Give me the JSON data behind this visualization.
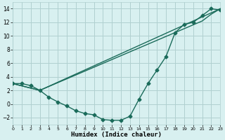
{
  "line1_x": [
    0,
    1,
    2,
    3,
    4,
    5,
    6,
    7,
    8,
    9,
    10,
    11,
    12,
    13,
    14,
    15,
    16,
    17,
    18,
    19,
    20,
    21,
    22,
    23
  ],
  "line1_y": [
    3.0,
    3.0,
    2.7,
    2.0,
    1.0,
    0.3,
    -0.3,
    -1.0,
    -1.4,
    -1.6,
    -2.3,
    -2.4,
    -2.4,
    -1.8,
    0.7,
    3.0,
    5.0,
    7.0,
    10.5,
    11.7,
    12.0,
    13.0,
    14.0,
    13.8
  ],
  "line2_x": [
    0,
    3,
    23
  ],
  "line2_y": [
    3.0,
    2.0,
    14.0
  ],
  "line3_x": [
    0,
    3,
    18,
    21,
    22,
    23
  ],
  "line3_y": [
    3.0,
    2.0,
    10.5,
    12.2,
    13.2,
    14.0
  ],
  "color": "#1a6b5a",
  "bg_color": "#d8f0f0",
  "grid_color": "#b0d0d0",
  "xlabel": "Humidex (Indice chaleur)",
  "xlim": [
    0,
    23
  ],
  "ylim": [
    -3.0,
    15.0
  ],
  "xticks": [
    0,
    1,
    2,
    3,
    4,
    5,
    6,
    7,
    8,
    9,
    10,
    11,
    12,
    13,
    14,
    15,
    16,
    17,
    18,
    19,
    20,
    21,
    22,
    23
  ],
  "yticks": [
    -2,
    0,
    2,
    4,
    6,
    8,
    10,
    12,
    14
  ],
  "marker": "D",
  "markersize": 2.5,
  "linewidth": 1.0
}
